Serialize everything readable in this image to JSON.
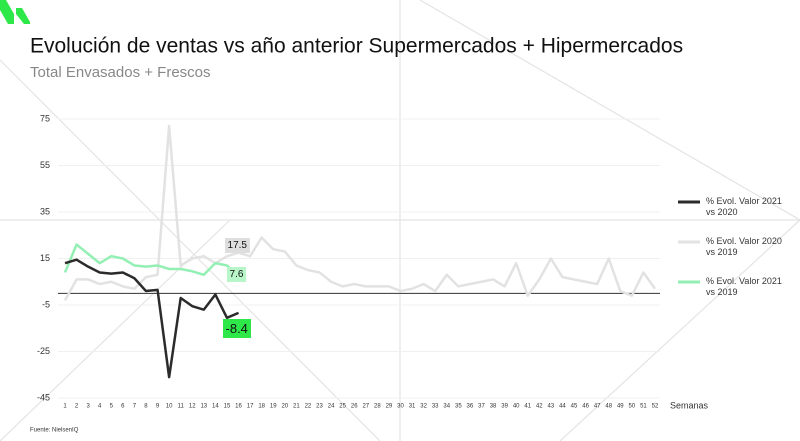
{
  "chart_data": {
    "type": "line",
    "title": "Evolución de ventas vs año anterior Supermercados + Hipermercados",
    "subtitle": "Total Envasados + Frescos",
    "x_label": "Semanas",
    "source": "Fuente: NielsenIQ",
    "categories": [
      "1",
      "2",
      "3",
      "4",
      "5",
      "6",
      "7",
      "8",
      "9",
      "10",
      "11",
      "12",
      "13",
      "14",
      "15",
      "16",
      "17",
      "18",
      "19",
      "20",
      "21",
      "22",
      "23",
      "24",
      "25",
      "26",
      "27",
      "28",
      "29",
      "30",
      "31",
      "32",
      "33",
      "34",
      "35",
      "36",
      "37",
      "38",
      "39",
      "40",
      "41",
      "42",
      "43",
      "44",
      "45",
      "46",
      "47",
      "48",
      "49",
      "50",
      "51",
      "52"
    ],
    "ylim": [
      -45,
      75
    ],
    "yticks": [
      -45,
      -25,
      -5,
      15,
      35,
      55,
      75
    ],
    "grid": true,
    "series": [
      {
        "name": "% Evol. Valor 2021 vs 2020",
        "color": "#2b2b2b",
        "values": [
          13,
          14.5,
          11.5,
          9,
          8.5,
          9,
          6.5,
          1,
          1.5,
          -36,
          -2,
          -5.5,
          -7,
          -0.5,
          -10.5,
          -8.4,
          null,
          null,
          null,
          null,
          null,
          null,
          null,
          null,
          null,
          null,
          null,
          null,
          null,
          null,
          null,
          null,
          null,
          null,
          null,
          null,
          null,
          null,
          null,
          null,
          null,
          null,
          null,
          null,
          null,
          null,
          null,
          null,
          null,
          null,
          null,
          null
        ]
      },
      {
        "name": "% Evol. Valor 2020 vs 2019",
        "color": "#e2e2e2",
        "values": [
          -3,
          6,
          6,
          4,
          5,
          3,
          2,
          7,
          8,
          72,
          12,
          15,
          16,
          13,
          16,
          17.5,
          16,
          24,
          19,
          18,
          12,
          10,
          9,
          5,
          3,
          4,
          3,
          3,
          3,
          1,
          2,
          4,
          1,
          8,
          3,
          4,
          5,
          6,
          3,
          13,
          -1,
          6,
          15,
          7,
          6,
          5,
          4,
          15,
          1,
          -1,
          9,
          2
        ]
      },
      {
        "name": "% Evol. Valor 2021 vs 2019",
        "color": "#93efb3",
        "values": [
          9,
          21,
          17,
          13,
          16,
          15,
          12,
          11.5,
          12,
          10.5,
          10.5,
          9.5,
          8,
          13,
          12,
          7.6,
          null,
          null,
          null,
          null,
          null,
          null,
          null,
          null,
          null,
          null,
          null,
          null,
          null,
          null,
          null,
          null,
          null,
          null,
          null,
          null,
          null,
          null,
          null,
          null,
          null,
          null,
          null,
          null,
          null,
          null,
          null,
          null,
          null,
          null,
          null,
          null
        ]
      }
    ]
  }
}
